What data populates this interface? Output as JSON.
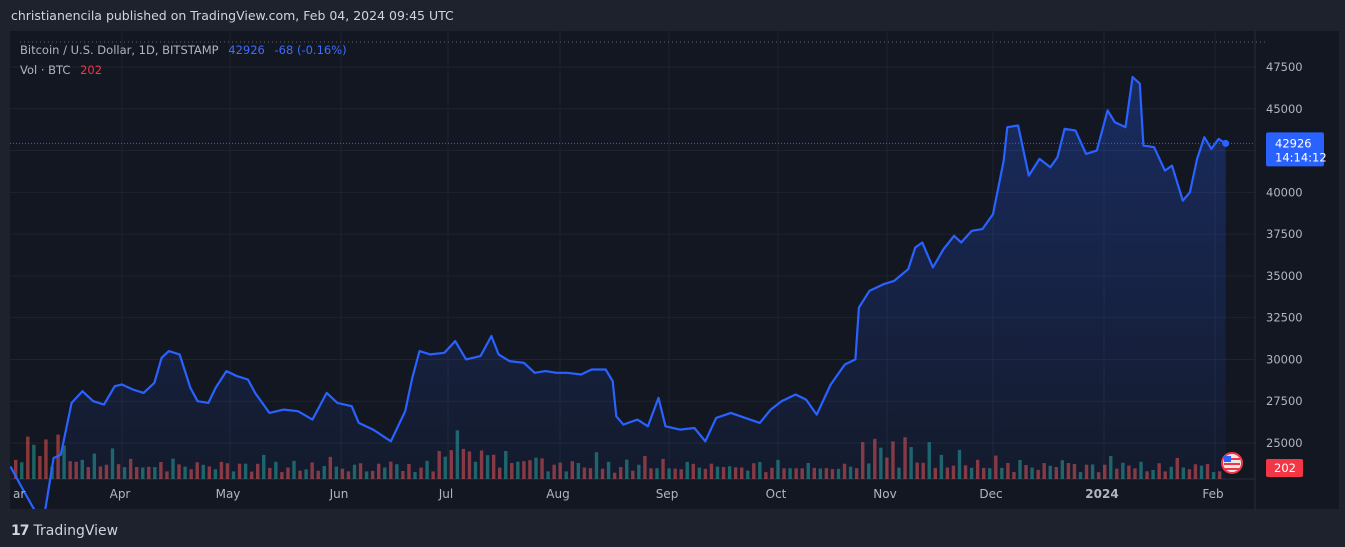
{
  "header": {
    "published_line": "christianencila published on TradingView.com, Feb 04, 2024 09:45 UTC"
  },
  "legend": {
    "symbol": "Bitcoin / U.S. Dollar, 1D, BITSTAMP",
    "last_price": "42926",
    "change": "-68 (-0.16%)",
    "vol_label": "Vol · BTC",
    "vol_value": "202"
  },
  "price_tag": {
    "price": "42926",
    "countdown": "14:14:12"
  },
  "volume_tag": "202",
  "footer": {
    "brand": "TradingView"
  },
  "colors": {
    "line": "#2962ff",
    "up_volume": "#26a69a",
    "down_volume": "#ef5350",
    "background": "#131722"
  },
  "chart_data": {
    "type": "area",
    "title": "Bitcoin / U.S. Dollar, 1D, BITSTAMP",
    "ylim": [
      23000,
      49000
    ],
    "y_ticks": [
      25000,
      27500,
      30000,
      32500,
      35000,
      37500,
      40000,
      42500,
      45000,
      47500
    ],
    "y_tick_labels": [
      "25000",
      "27500",
      "30000",
      "32500",
      "35000",
      "37500",
      "40000",
      "",
      "45000",
      "47500"
    ],
    "x_tick_labels": [
      "ar",
      "Apr",
      "May",
      "Jun",
      "Jul",
      "Aug",
      "Sep",
      "Oct",
      "Nov",
      "Dec",
      "2024",
      "Feb"
    ],
    "x_tick_dates": [
      "2023-03-01",
      "2023-04-01",
      "2023-05-01",
      "2023-06-01",
      "2023-07-01",
      "2023-08-01",
      "2023-09-01",
      "2023-10-01",
      "2023-11-01",
      "2023-12-01",
      "2024-01-01",
      "2024-02-01"
    ],
    "last_price_line": 42926,
    "series": [
      {
        "name": "Bitcoin / U.S. Dollar",
        "points": [
          [
            "2023-03-01",
            23600
          ],
          [
            "2023-03-04",
            22400
          ],
          [
            "2023-03-10",
            20100
          ],
          [
            "2023-03-13",
            24100
          ],
          [
            "2023-03-15",
            24300
          ],
          [
            "2023-03-18",
            27400
          ],
          [
            "2023-03-21",
            28100
          ],
          [
            "2023-03-24",
            27500
          ],
          [
            "2023-03-27",
            27300
          ],
          [
            "2023-03-30",
            28400
          ],
          [
            "2023-04-01",
            28500
          ],
          [
            "2023-04-04",
            28200
          ],
          [
            "2023-04-07",
            28000
          ],
          [
            "2023-04-10",
            28600
          ],
          [
            "2023-04-12",
            30100
          ],
          [
            "2023-04-14",
            30500
          ],
          [
            "2023-04-17",
            30300
          ],
          [
            "2023-04-20",
            28300
          ],
          [
            "2023-04-22",
            27500
          ],
          [
            "2023-04-25",
            27400
          ],
          [
            "2023-04-27",
            28300
          ],
          [
            "2023-04-30",
            29300
          ],
          [
            "2023-05-03",
            29000
          ],
          [
            "2023-05-06",
            28800
          ],
          [
            "2023-05-08",
            28000
          ],
          [
            "2023-05-12",
            26800
          ],
          [
            "2023-05-16",
            27000
          ],
          [
            "2023-05-20",
            26900
          ],
          [
            "2023-05-24",
            26400
          ],
          [
            "2023-05-28",
            28000
          ],
          [
            "2023-05-31",
            27400
          ],
          [
            "2023-06-04",
            27200
          ],
          [
            "2023-06-06",
            26200
          ],
          [
            "2023-06-10",
            25800
          ],
          [
            "2023-06-15",
            25100
          ],
          [
            "2023-06-19",
            26900
          ],
          [
            "2023-06-21",
            28900
          ],
          [
            "2023-06-23",
            30500
          ],
          [
            "2023-06-26",
            30300
          ],
          [
            "2023-06-30",
            30400
          ],
          [
            "2023-07-03",
            31100
          ],
          [
            "2023-07-06",
            30000
          ],
          [
            "2023-07-10",
            30200
          ],
          [
            "2023-07-13",
            31400
          ],
          [
            "2023-07-15",
            30300
          ],
          [
            "2023-07-18",
            29900
          ],
          [
            "2023-07-22",
            29800
          ],
          [
            "2023-07-25",
            29200
          ],
          [
            "2023-07-28",
            29300
          ],
          [
            "2023-07-31",
            29200
          ],
          [
            "2023-08-03",
            29200
          ],
          [
            "2023-08-07",
            29100
          ],
          [
            "2023-08-10",
            29400
          ],
          [
            "2023-08-14",
            29400
          ],
          [
            "2023-08-16",
            28700
          ],
          [
            "2023-08-17",
            26600
          ],
          [
            "2023-08-19",
            26100
          ],
          [
            "2023-08-23",
            26400
          ],
          [
            "2023-08-26",
            26000
          ],
          [
            "2023-08-29",
            27700
          ],
          [
            "2023-08-31",
            26000
          ],
          [
            "2023-09-04",
            25800
          ],
          [
            "2023-09-08",
            25900
          ],
          [
            "2023-09-11",
            25100
          ],
          [
            "2023-09-14",
            26500
          ],
          [
            "2023-09-18",
            26800
          ],
          [
            "2023-09-22",
            26500
          ],
          [
            "2023-09-26",
            26200
          ],
          [
            "2023-09-29",
            27000
          ],
          [
            "2023-10-02",
            27500
          ],
          [
            "2023-10-06",
            27900
          ],
          [
            "2023-10-09",
            27600
          ],
          [
            "2023-10-12",
            26700
          ],
          [
            "2023-10-16",
            28500
          ],
          [
            "2023-10-20",
            29700
          ],
          [
            "2023-10-23",
            30000
          ],
          [
            "2023-10-24",
            33100
          ],
          [
            "2023-10-27",
            34100
          ],
          [
            "2023-10-31",
            34500
          ],
          [
            "2023-11-03",
            34700
          ],
          [
            "2023-11-07",
            35400
          ],
          [
            "2023-11-09",
            36700
          ],
          [
            "2023-11-11",
            37000
          ],
          [
            "2023-11-14",
            35500
          ],
          [
            "2023-11-17",
            36600
          ],
          [
            "2023-11-20",
            37400
          ],
          [
            "2023-11-22",
            37000
          ],
          [
            "2023-11-25",
            37700
          ],
          [
            "2023-11-28",
            37800
          ],
          [
            "2023-12-01",
            38700
          ],
          [
            "2023-12-04",
            41900
          ],
          [
            "2023-12-05",
            43900
          ],
          [
            "2023-12-08",
            44000
          ],
          [
            "2023-12-11",
            41000
          ],
          [
            "2023-12-14",
            42000
          ],
          [
            "2023-12-17",
            41500
          ],
          [
            "2023-12-19",
            42100
          ],
          [
            "2023-12-21",
            43800
          ],
          [
            "2023-12-24",
            43700
          ],
          [
            "2023-12-27",
            42300
          ],
          [
            "2023-12-30",
            42500
          ],
          [
            "2024-01-02",
            44900
          ],
          [
            "2024-01-04",
            44200
          ],
          [
            "2024-01-07",
            43900
          ],
          [
            "2024-01-09",
            46900
          ],
          [
            "2024-01-11",
            46500
          ],
          [
            "2024-01-12",
            42800
          ],
          [
            "2024-01-15",
            42700
          ],
          [
            "2024-01-18",
            41300
          ],
          [
            "2024-01-20",
            41600
          ],
          [
            "2024-01-23",
            39500
          ],
          [
            "2024-01-25",
            40000
          ],
          [
            "2024-01-27",
            42000
          ],
          [
            "2024-01-29",
            43300
          ],
          [
            "2024-01-31",
            42600
          ],
          [
            "2024-02-02",
            43200
          ],
          [
            "2024-02-04",
            42926
          ]
        ]
      },
      {
        "name": "Vol · BTC",
        "values_note": "",
        "bars": [
          [
            1,
            0.55,
            1
          ],
          [
            2,
            0.35,
            0
          ],
          [
            3,
            0.7,
            1
          ],
          [
            4,
            0.9,
            0
          ],
          [
            5,
            0.45,
            1
          ],
          [
            6,
            0.62,
            0
          ],
          [
            7,
            0.3,
            1
          ],
          [
            8,
            0.82,
            1
          ],
          [
            9,
            0.5,
            0
          ],
          [
            10,
            0.4,
            1
          ],
          [
            11,
            0.3,
            0
          ],
          [
            12,
            0.55,
            1
          ],
          [
            13,
            0.25,
            0
          ],
          [
            14,
            0.42,
            1
          ],
          [
            15,
            0.33,
            0
          ],
          [
            16,
            0.28,
            1
          ],
          [
            17,
            0.48,
            0
          ],
          [
            18,
            0.36,
            1
          ],
          [
            19,
            0.22,
            0
          ],
          [
            20,
            0.3,
            1
          ],
          [
            21,
            0.27,
            0
          ],
          [
            22,
            0.2,
            1
          ],
          [
            23,
            0.35,
            0
          ],
          [
            24,
            0.25,
            1
          ],
          [
            25,
            0.28,
            0
          ],
          [
            26,
            0.2,
            1
          ],
          [
            27,
            0.4,
            0
          ],
          [
            28,
            0.23,
            1
          ],
          [
            29,
            0.3,
            0
          ],
          [
            30,
            0.18,
            1
          ],
          [
            31,
            0.25,
            0
          ],
          [
            32,
            0.32,
            1
          ],
          [
            33,
            0.22,
            0
          ],
          [
            34,
            0.28,
            1
          ],
          [
            35,
            0.36,
            0
          ],
          [
            36,
            0.26,
            1
          ],
          [
            37,
            0.2,
            0
          ],
          [
            38,
            0.3,
            1
          ],
          [
            39,
            0.24,
            0
          ],
          [
            40,
            0.18,
            1
          ],
          [
            41,
            0.28,
            0
          ],
          [
            42,
            0.36,
            1
          ],
          [
            43,
            0.25,
            0
          ],
          [
            44,
            0.3,
            1
          ],
          [
            45,
            0.2,
            0
          ],
          [
            46,
            0.24,
            1
          ],
          [
            47,
            0.3,
            0
          ],
          [
            48,
            0.22,
            1
          ],
          [
            49,
            0.19,
            0
          ],
          [
            50,
            0.26,
            1
          ],
          [
            51,
            0.2,
            0
          ],
          [
            52,
            0.24,
            1
          ],
          [
            53,
            0.33,
            0
          ],
          [
            54,
            0.28,
            1
          ],
          [
            55,
            0.18,
            0
          ],
          [
            56,
            0.22,
            1
          ],
          [
            57,
            0.3,
            0
          ],
          [
            58,
            0.26,
            1
          ],
          [
            59,
            0.2,
            0
          ],
          [
            60,
            0.16,
            1
          ],
          [
            61,
            0.24,
            0
          ],
          [
            62,
            0.28,
            1
          ],
          [
            63,
            0.32,
            0
          ],
          [
            64,
            0.22,
            1
          ],
          [
            65,
            0.18,
            0
          ],
          [
            66,
            0.26,
            1
          ],
          [
            67,
            0.2,
            0
          ],
          [
            68,
            0.24,
            1
          ],
          [
            69,
            0.3,
            0
          ],
          [
            70,
            0.2,
            1
          ]
        ]
      }
    ]
  }
}
